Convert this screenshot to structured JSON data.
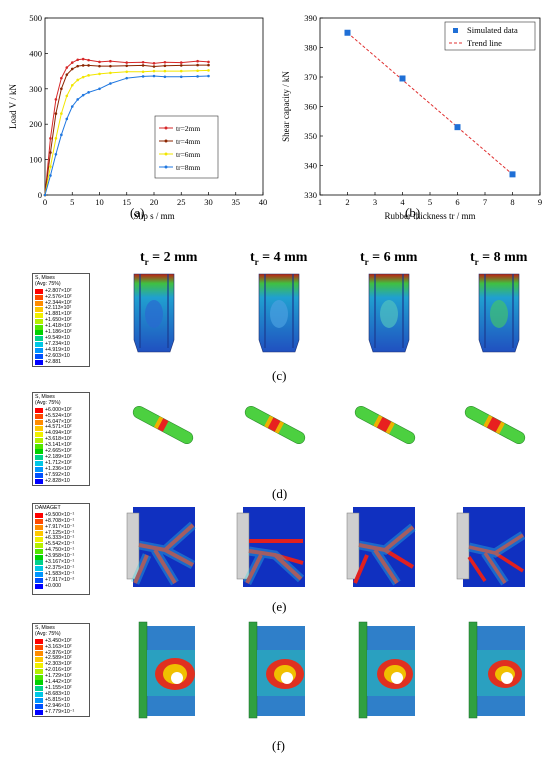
{
  "panels": {
    "a": "(a)",
    "b": "(b)",
    "c": "(c)",
    "d": "(d)",
    "e": "(e)",
    "f": "(f)"
  },
  "columns": [
    {
      "base": "t",
      "sub": "r",
      "value": " = 2 mm"
    },
    {
      "base": "t",
      "sub": "r",
      "value": " = 4 mm"
    },
    {
      "base": "t",
      "sub": "r",
      "value": " = 6 mm"
    },
    {
      "base": "t",
      "sub": "r",
      "value": " = 8 mm"
    }
  ],
  "chart_data": [
    {
      "type": "line",
      "ylabel": "Load V / kN",
      "xlabel": "Slip s / mm",
      "xlim": [
        0,
        40
      ],
      "ylim": [
        0,
        500
      ],
      "xticks": [
        0,
        5,
        10,
        15,
        20,
        25,
        30,
        35,
        40
      ],
      "yticks": [
        0,
        100,
        200,
        300,
        400,
        500
      ],
      "legend_position": "bottom-right",
      "series": [
        {
          "name": "tr=2mm",
          "color": "#d62728",
          "marker": "circle",
          "x": [
            0,
            1,
            2,
            3,
            4,
            5,
            6,
            7,
            8,
            10,
            12,
            15,
            18,
            20,
            22,
            25,
            28,
            30
          ],
          "y": [
            0,
            160,
            270,
            330,
            360,
            374,
            382,
            384,
            381,
            376,
            378,
            374,
            375,
            372,
            375,
            374,
            378,
            376
          ]
        },
        {
          "name": "tr=4mm",
          "color": "#8b2500",
          "marker": "circle",
          "x": [
            0,
            1,
            2,
            3,
            4,
            5,
            6,
            7,
            8,
            10,
            12,
            15,
            18,
            20,
            22,
            25,
            28,
            30
          ],
          "y": [
            0,
            120,
            230,
            300,
            340,
            356,
            364,
            366,
            366,
            364,
            364,
            365,
            366,
            363,
            365,
            366,
            367,
            367
          ]
        },
        {
          "name": "tr=6mm",
          "color": "#f2e600",
          "marker": "circle",
          "x": [
            0,
            1,
            2,
            3,
            4,
            5,
            6,
            7,
            8,
            10,
            12,
            15,
            18,
            20,
            22,
            25,
            28,
            30
          ],
          "y": [
            0,
            80,
            160,
            230,
            280,
            310,
            325,
            333,
            338,
            342,
            345,
            348,
            348,
            350,
            350,
            350,
            351,
            352
          ]
        },
        {
          "name": "tr=8mm",
          "color": "#1f77e0",
          "marker": "circle",
          "x": [
            0,
            1,
            2,
            3,
            4,
            5,
            6,
            7,
            8,
            10,
            12,
            15,
            18,
            20,
            22,
            25,
            28,
            30
          ],
          "y": [
            0,
            55,
            115,
            170,
            215,
            250,
            270,
            282,
            290,
            300,
            315,
            330,
            335,
            336,
            334,
            334,
            335,
            336
          ]
        }
      ]
    },
    {
      "type": "scatter",
      "ylabel": "Shear capacity / kN",
      "xlabel": "Rubber thickness tr / mm",
      "xlim": [
        1,
        9
      ],
      "ylim": [
        330,
        390
      ],
      "xticks": [
        1,
        2,
        3,
        4,
        5,
        6,
        7,
        8,
        9
      ],
      "yticks": [
        330,
        340,
        350,
        360,
        370,
        380,
        390
      ],
      "legend_position": "top-right",
      "series": [
        {
          "name": "Simulated data",
          "color": "#1f6fd6",
          "marker": "square",
          "x": [
            2,
            4,
            6,
            8
          ],
          "y": [
            385,
            369.5,
            353,
            337
          ]
        },
        {
          "name": "Trend line",
          "color": "#e03030",
          "style": "dashed",
          "x": [
            2,
            8
          ],
          "y": [
            385,
            337
          ]
        }
      ]
    }
  ],
  "colors": {
    "contour": [
      "#ff0000",
      "#ff4a00",
      "#ff8c00",
      "#ffc800",
      "#f0f000",
      "#b4f000",
      "#50e600",
      "#00d200",
      "#00d28c",
      "#00c8e6",
      "#0096ff",
      "#0050ff",
      "#0000ff"
    ]
  },
  "legends": {
    "c": {
      "title": "S, Mises\n(Avg: 75%)",
      "values": [
        "+2.807×10²",
        "+2.576×10²",
        "+2.344×10²",
        "+2.113×10²",
        "+1.881×10²",
        "+1.650×10²",
        "+1.418×10²",
        "+1.186×10²",
        "+9.549×10",
        "+7.234×10",
        "+4.919×10",
        "+2.603×10",
        "+2.881"
      ]
    },
    "d": {
      "title": "S, Mises\n(Avg: 75%)",
      "values": [
        "+6.000×10²",
        "+5.524×10²",
        "+5.047×10²",
        "+4.571×10²",
        "+4.094×10²",
        "+3.618×10²",
        "+3.141×10²",
        "+2.665×10²",
        "+2.189×10²",
        "+1.712×10²",
        "+1.236×10²",
        "+7.592×10",
        "+2.828×10"
      ]
    },
    "e": {
      "title": "DAMAGET",
      "values": [
        "+9.500×10⁻¹",
        "+8.708×10⁻¹",
        "+7.917×10⁻¹",
        "+7.125×10⁻¹",
        "+6.333×10⁻¹",
        "+5.542×10⁻¹",
        "+4.750×10⁻¹",
        "+3.958×10⁻¹",
        "+3.167×10⁻¹",
        "+2.375×10⁻¹",
        "+1.583×10⁻¹",
        "+7.917×10⁻²",
        "+0.000"
      ]
    },
    "f": {
      "title": "S, Mises\n(Avg: 75%)",
      "values": [
        "+3.450×10²",
        "+3.163×10²",
        "+2.876×10²",
        "+2.589×10²",
        "+2.303×10²",
        "+2.016×10²",
        "+1.729×10²",
        "+1.442×10²",
        "+1.155×10²",
        "+8.683×10",
        "+5.815×10",
        "+2.946×10",
        "+7.779×10⁻¹"
      ]
    }
  }
}
